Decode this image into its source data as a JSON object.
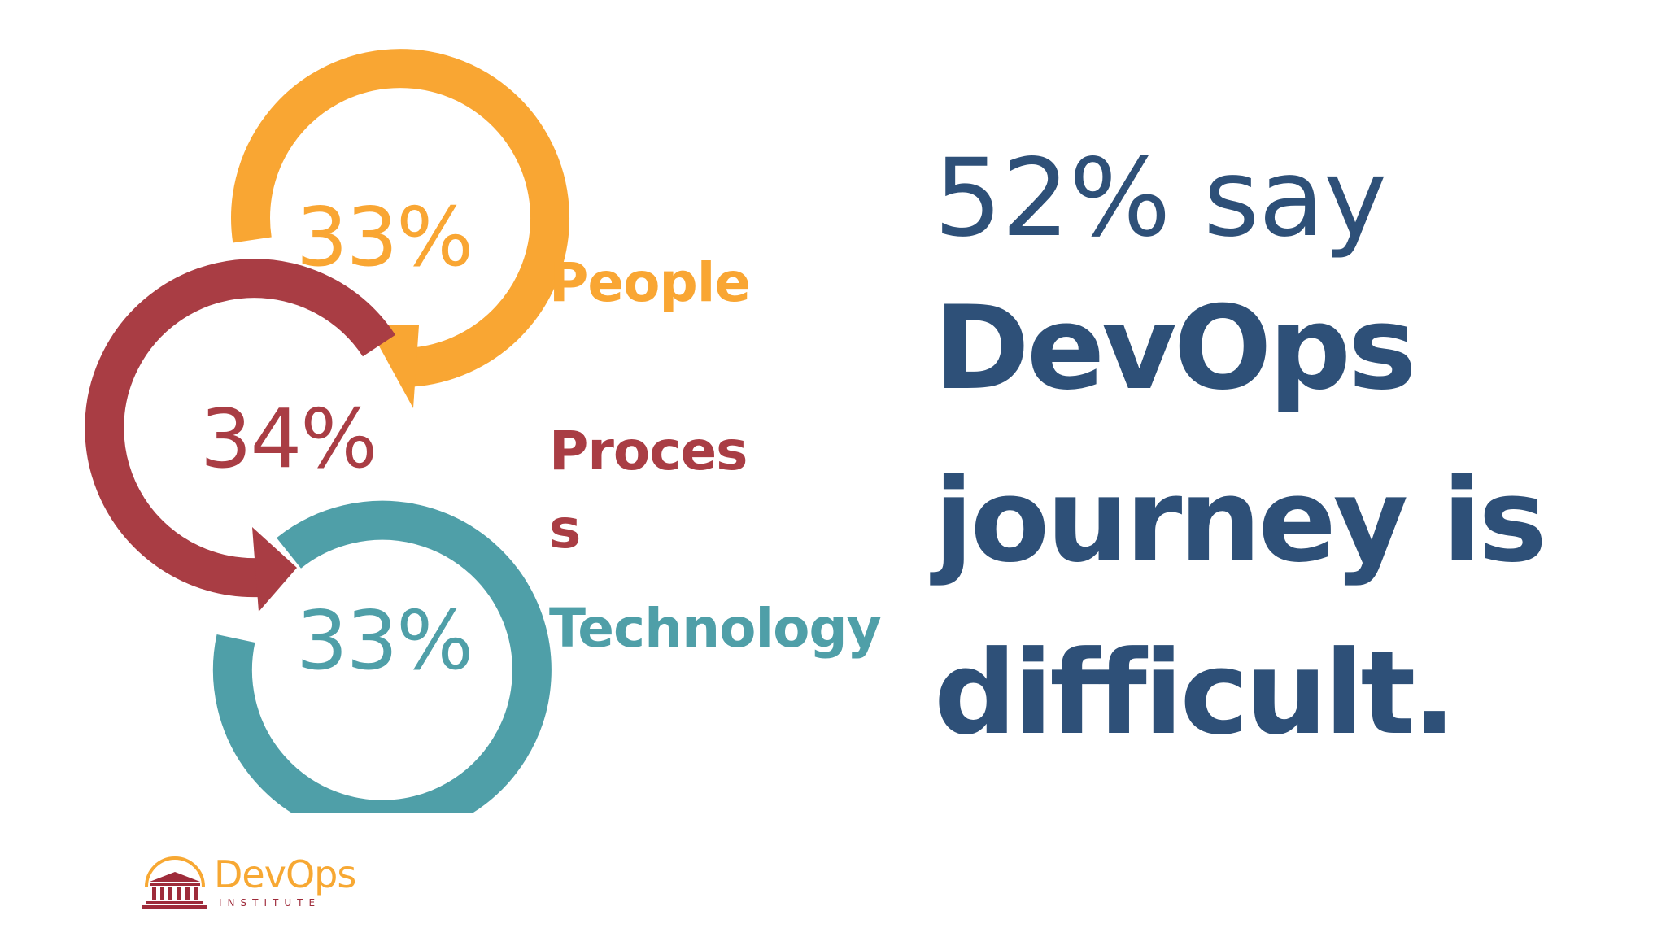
{
  "diagram": {
    "segments": [
      {
        "percent": "33%",
        "label": "People",
        "color": "#f9a633"
      },
      {
        "percent": "34%",
        "label_line1": "Proces",
        "label_line2": "s",
        "color": "#a93d44"
      },
      {
        "percent": "33%",
        "label": "Technology",
        "color": "#4f9fa8"
      }
    ]
  },
  "headline": {
    "line1": "52% say",
    "line2": "DevOps",
    "line3": "journey is",
    "line4": "difficult."
  },
  "logo": {
    "name": "DevOps",
    "sub": "INSTITUTE"
  },
  "icons": {
    "logo_mark": "temple-icon"
  }
}
